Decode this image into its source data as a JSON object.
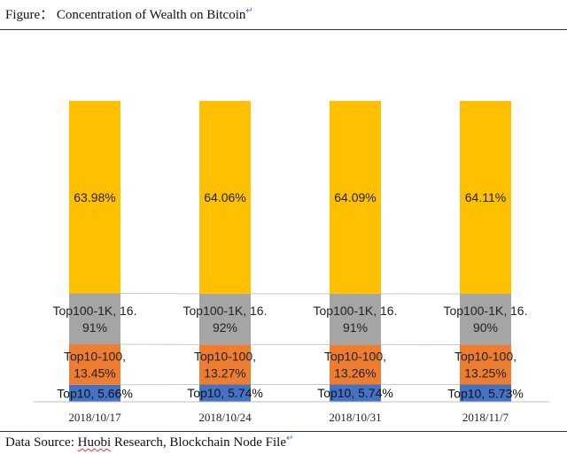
{
  "caption": {
    "text": "Figure： Concentration of Wealth on Bitcoin",
    "mark": "↵"
  },
  "source": {
    "prefix": "Data Source: ",
    "org": "Huobi",
    "rest": " Research, Blockchain Node File",
    "mark": "↵"
  },
  "colors": {
    "top10": "#4472c4",
    "top10_100": "#ed7d31",
    "top100_1k": "#a5a5a5",
    "rest": "#ffc000"
  },
  "chart_data": {
    "type": "bar",
    "stacked": true,
    "categories": [
      "2018/10/17",
      "2018/10/24",
      "2018/10/31",
      "2018/11/7"
    ],
    "series": [
      {
        "name": "Top10",
        "values": [
          5.66,
          5.74,
          5.74,
          5.73
        ],
        "labels": [
          [
            "Top10, 5.66%"
          ],
          [
            "Top10, 5.74%"
          ],
          [
            "Top10, 5.74%"
          ],
          [
            "Top10, 5.73%"
          ]
        ]
      },
      {
        "name": "Top10-100",
        "values": [
          13.45,
          13.27,
          13.26,
          13.25
        ],
        "labels": [
          [
            "Top10-100,",
            "13.45%"
          ],
          [
            "Top10-100,",
            "13.27%"
          ],
          [
            "Top10-100,",
            "13.26%"
          ],
          [
            "Top10-100,",
            "13.25%"
          ]
        ]
      },
      {
        "name": "Top100-1K",
        "values": [
          16.91,
          16.92,
          16.91,
          16.9
        ],
        "labels": [
          [
            "Top100-1K, 16.",
            "91%"
          ],
          [
            "Top100-1K, 16.",
            "92%"
          ],
          [
            "Top100-1K, 16.",
            "91%"
          ],
          [
            "Top100-1K, 16.",
            "90%"
          ]
        ]
      },
      {
        "values": [
          63.98,
          64.06,
          64.09,
          64.11
        ],
        "labels": [
          [
            "63.98%"
          ],
          [
            "64.06%"
          ],
          [
            "64.09%"
          ],
          [
            "64.11%"
          ]
        ]
      }
    ],
    "ylim": [
      0,
      100
    ],
    "grid": false,
    "legend": "none"
  }
}
